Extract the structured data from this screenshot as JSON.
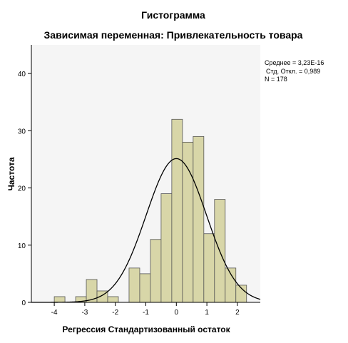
{
  "chart_data": {
    "type": "bar",
    "title": "Гистограмма",
    "subtitle": "Зависимая переменная: Привлекательность товара",
    "xlabel": "Регрессия Стандартизованный остаток",
    "ylabel": "Частота",
    "xlim": [
      -4.75,
      2.75
    ],
    "ylim": [
      0,
      45
    ],
    "x_ticks": [
      -4,
      -3,
      -2,
      -1,
      0,
      1,
      2
    ],
    "y_ticks": [
      0,
      10,
      20,
      30,
      40
    ],
    "bin_width": 0.35,
    "bins": [
      {
        "start": -4.0,
        "count": 1
      },
      {
        "start": -3.3,
        "count": 1
      },
      {
        "start": -2.95,
        "count": 4
      },
      {
        "start": -2.6,
        "count": 2
      },
      {
        "start": -2.25,
        "count": 1
      },
      {
        "start": -1.55,
        "count": 6
      },
      {
        "start": -1.2,
        "count": 5
      },
      {
        "start": -0.85,
        "count": 11
      },
      {
        "start": -0.5,
        "count": 19
      },
      {
        "start": -0.15,
        "count": 32
      },
      {
        "start": 0.2,
        "count": 28
      },
      {
        "start": 0.55,
        "count": 29
      },
      {
        "start": 0.9,
        "count": 12
      },
      {
        "start": 1.25,
        "count": 18
      },
      {
        "start": 1.6,
        "count": 6
      },
      {
        "start": 1.95,
        "count": 3
      }
    ],
    "normal_curve": {
      "mean": 0.0,
      "std": 0.989,
      "n": 178
    },
    "stats": [
      "Среднее = 3,23E-16",
      "Стд. Откл. = 0,989",
      "N = 178"
    ],
    "grid": false,
    "colors": {
      "bar_fill": "#d8d6a8",
      "bar_stroke": "#555555",
      "curve": "#000000",
      "plot_bg": "#f5f5f5"
    }
  }
}
